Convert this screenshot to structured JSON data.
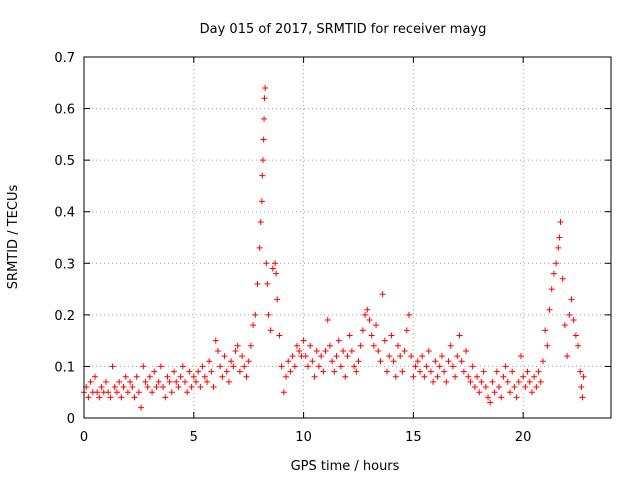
{
  "chart_data": {
    "type": "scatter",
    "title": "Day 015 of 2017, SRMTID for receiver mayg",
    "xlabel": "GPS time / hours",
    "ylabel": "SRMTID / TECUs",
    "xlim": [
      0,
      24
    ],
    "ylim": [
      0,
      0.7
    ],
    "x_ticks": [
      0,
      5,
      10,
      15,
      20
    ],
    "y_ticks": [
      0,
      0.1,
      0.2,
      0.3,
      0.4,
      0.5,
      0.6,
      0.7
    ],
    "x_tick_labels": [
      "0",
      "5",
      "10",
      "15",
      "20"
    ],
    "y_tick_labels": [
      "0",
      "0.1",
      "0.2",
      "0.3",
      "0.4",
      "0.5",
      "0.6",
      "0.7"
    ],
    "grid": true,
    "marker": "+",
    "color": "#ff0000",
    "series": [
      {
        "name": "SRMTID",
        "points": [
          [
            0.0,
            0.05
          ],
          [
            0.1,
            0.06
          ],
          [
            0.2,
            0.04
          ],
          [
            0.3,
            0.07
          ],
          [
            0.4,
            0.05
          ],
          [
            0.5,
            0.08
          ],
          [
            0.6,
            0.05
          ],
          [
            0.7,
            0.04
          ],
          [
            0.8,
            0.06
          ],
          [
            0.9,
            0.05
          ],
          [
            1.0,
            0.07
          ],
          [
            1.1,
            0.05
          ],
          [
            1.2,
            0.04
          ],
          [
            1.3,
            0.1
          ],
          [
            1.4,
            0.06
          ],
          [
            1.5,
            0.05
          ],
          [
            1.6,
            0.07
          ],
          [
            1.7,
            0.04
          ],
          [
            1.8,
            0.06
          ],
          [
            1.9,
            0.08
          ],
          [
            2.0,
            0.05
          ],
          [
            2.1,
            0.07
          ],
          [
            2.2,
            0.06
          ],
          [
            2.3,
            0.04
          ],
          [
            2.4,
            0.08
          ],
          [
            2.5,
            0.05
          ],
          [
            2.6,
            0.02
          ],
          [
            2.7,
            0.1
          ],
          [
            2.8,
            0.07
          ],
          [
            2.9,
            0.06
          ],
          [
            3.0,
            0.08
          ],
          [
            3.1,
            0.05
          ],
          [
            3.2,
            0.09
          ],
          [
            3.3,
            0.06
          ],
          [
            3.4,
            0.07
          ],
          [
            3.5,
            0.1
          ],
          [
            3.6,
            0.06
          ],
          [
            3.7,
            0.04
          ],
          [
            3.8,
            0.08
          ],
          [
            3.9,
            0.07
          ],
          [
            4.0,
            0.05
          ],
          [
            4.1,
            0.09
          ],
          [
            4.2,
            0.07
          ],
          [
            4.3,
            0.06
          ],
          [
            4.4,
            0.08
          ],
          [
            4.5,
            0.1
          ],
          [
            4.6,
            0.07
          ],
          [
            4.7,
            0.05
          ],
          [
            4.8,
            0.09
          ],
          [
            4.9,
            0.06
          ],
          [
            5.0,
            0.08
          ],
          [
            5.1,
            0.07
          ],
          [
            5.2,
            0.09
          ],
          [
            5.3,
            0.06
          ],
          [
            5.4,
            0.1
          ],
          [
            5.5,
            0.08
          ],
          [
            5.6,
            0.07
          ],
          [
            5.7,
            0.11
          ],
          [
            5.8,
            0.09
          ],
          [
            5.9,
            0.06
          ],
          [
            6.0,
            0.15
          ],
          [
            6.1,
            0.13
          ],
          [
            6.2,
            0.1
          ],
          [
            6.3,
            0.08
          ],
          [
            6.4,
            0.12
          ],
          [
            6.5,
            0.09
          ],
          [
            6.6,
            0.07
          ],
          [
            6.7,
            0.11
          ],
          [
            6.8,
            0.1
          ],
          [
            6.9,
            0.13
          ],
          [
            7.0,
            0.14
          ],
          [
            7.1,
            0.09
          ],
          [
            7.2,
            0.12
          ],
          [
            7.3,
            0.1
          ],
          [
            7.4,
            0.08
          ],
          [
            7.5,
            0.11
          ],
          [
            7.6,
            0.14
          ],
          [
            7.7,
            0.18
          ],
          [
            7.8,
            0.2
          ],
          [
            7.9,
            0.26
          ],
          [
            8.0,
            0.33
          ],
          [
            8.05,
            0.38
          ],
          [
            8.1,
            0.42
          ],
          [
            8.12,
            0.47
          ],
          [
            8.15,
            0.5
          ],
          [
            8.18,
            0.54
          ],
          [
            8.2,
            0.58
          ],
          [
            8.22,
            0.62
          ],
          [
            8.25,
            0.64
          ],
          [
            8.3,
            0.3
          ],
          [
            8.35,
            0.26
          ],
          [
            8.4,
            0.2
          ],
          [
            8.5,
            0.17
          ],
          [
            8.6,
            0.29
          ],
          [
            8.7,
            0.3
          ],
          [
            8.75,
            0.28
          ],
          [
            8.8,
            0.23
          ],
          [
            8.9,
            0.16
          ],
          [
            9.0,
            0.1
          ],
          [
            9.1,
            0.05
          ],
          [
            9.2,
            0.08
          ],
          [
            9.3,
            0.11
          ],
          [
            9.4,
            0.09
          ],
          [
            9.5,
            0.12
          ],
          [
            9.6,
            0.1
          ],
          [
            9.7,
            0.14
          ],
          [
            9.8,
            0.13
          ],
          [
            9.9,
            0.12
          ],
          [
            10.0,
            0.15
          ],
          [
            10.1,
            0.12
          ],
          [
            10.2,
            0.1
          ],
          [
            10.3,
            0.14
          ],
          [
            10.4,
            0.11
          ],
          [
            10.5,
            0.08
          ],
          [
            10.6,
            0.13
          ],
          [
            10.7,
            0.1
          ],
          [
            10.8,
            0.12
          ],
          [
            10.9,
            0.09
          ],
          [
            11.0,
            0.13
          ],
          [
            11.1,
            0.19
          ],
          [
            11.2,
            0.14
          ],
          [
            11.3,
            0.11
          ],
          [
            11.4,
            0.09
          ],
          [
            11.5,
            0.12
          ],
          [
            11.6,
            0.15
          ],
          [
            11.7,
            0.1
          ],
          [
            11.8,
            0.13
          ],
          [
            11.9,
            0.08
          ],
          [
            12.0,
            0.12
          ],
          [
            12.1,
            0.16
          ],
          [
            12.2,
            0.13
          ],
          [
            12.3,
            0.1
          ],
          [
            12.4,
            0.09
          ],
          [
            12.5,
            0.11
          ],
          [
            12.6,
            0.14
          ],
          [
            12.7,
            0.17
          ],
          [
            12.8,
            0.2
          ],
          [
            12.9,
            0.21
          ],
          [
            13.0,
            0.19
          ],
          [
            13.1,
            0.16
          ],
          [
            13.2,
            0.14
          ],
          [
            13.3,
            0.18
          ],
          [
            13.4,
            0.13
          ],
          [
            13.5,
            0.11
          ],
          [
            13.6,
            0.24
          ],
          [
            13.7,
            0.15
          ],
          [
            13.8,
            0.09
          ],
          [
            13.9,
            0.12
          ],
          [
            14.0,
            0.16
          ],
          [
            14.1,
            0.11
          ],
          [
            14.2,
            0.08
          ],
          [
            14.3,
            0.14
          ],
          [
            14.4,
            0.12
          ],
          [
            14.5,
            0.09
          ],
          [
            14.6,
            0.13
          ],
          [
            14.7,
            0.17
          ],
          [
            14.8,
            0.2
          ],
          [
            14.9,
            0.12
          ],
          [
            15.0,
            0.08
          ],
          [
            15.1,
            0.1
          ],
          [
            15.2,
            0.11
          ],
          [
            15.3,
            0.09
          ],
          [
            15.4,
            0.12
          ],
          [
            15.5,
            0.08
          ],
          [
            15.6,
            0.1
          ],
          [
            15.7,
            0.13
          ],
          [
            15.8,
            0.09
          ],
          [
            15.9,
            0.07
          ],
          [
            16.0,
            0.11
          ],
          [
            16.1,
            0.08
          ],
          [
            16.2,
            0.1
          ],
          [
            16.3,
            0.12
          ],
          [
            16.4,
            0.09
          ],
          [
            16.5,
            0.07
          ],
          [
            16.6,
            0.11
          ],
          [
            16.7,
            0.14
          ],
          [
            16.8,
            0.1
          ],
          [
            16.9,
            0.08
          ],
          [
            17.0,
            0.12
          ],
          [
            17.1,
            0.16
          ],
          [
            17.2,
            0.11
          ],
          [
            17.3,
            0.09
          ],
          [
            17.4,
            0.13
          ],
          [
            17.5,
            0.08
          ],
          [
            17.6,
            0.07
          ],
          [
            17.7,
            0.1
          ],
          [
            17.8,
            0.06
          ],
          [
            17.9,
            0.08
          ],
          [
            18.0,
            0.05
          ],
          [
            18.1,
            0.07
          ],
          [
            18.2,
            0.09
          ],
          [
            18.3,
            0.06
          ],
          [
            18.4,
            0.04
          ],
          [
            18.5,
            0.03
          ],
          [
            18.6,
            0.07
          ],
          [
            18.7,
            0.05
          ],
          [
            18.8,
            0.09
          ],
          [
            18.9,
            0.06
          ],
          [
            19.0,
            0.04
          ],
          [
            19.1,
            0.08
          ],
          [
            19.2,
            0.1
          ],
          [
            19.3,
            0.07
          ],
          [
            19.4,
            0.05
          ],
          [
            19.5,
            0.09
          ],
          [
            19.6,
            0.06
          ],
          [
            19.7,
            0.04
          ],
          [
            19.8,
            0.07
          ],
          [
            19.9,
            0.12
          ],
          [
            20.0,
            0.08
          ],
          [
            20.1,
            0.06
          ],
          [
            20.2,
            0.09
          ],
          [
            20.3,
            0.07
          ],
          [
            20.4,
            0.05
          ],
          [
            20.5,
            0.08
          ],
          [
            20.6,
            0.06
          ],
          [
            20.7,
            0.09
          ],
          [
            20.8,
            0.07
          ],
          [
            20.9,
            0.11
          ],
          [
            21.0,
            0.17
          ],
          [
            21.1,
            0.14
          ],
          [
            21.2,
            0.21
          ],
          [
            21.3,
            0.25
          ],
          [
            21.4,
            0.28
          ],
          [
            21.5,
            0.3
          ],
          [
            21.6,
            0.33
          ],
          [
            21.65,
            0.35
          ],
          [
            21.7,
            0.38
          ],
          [
            21.8,
            0.27
          ],
          [
            21.9,
            0.18
          ],
          [
            22.0,
            0.12
          ],
          [
            22.1,
            0.2
          ],
          [
            22.2,
            0.23
          ],
          [
            22.3,
            0.19
          ],
          [
            22.4,
            0.16
          ],
          [
            22.5,
            0.14
          ],
          [
            22.6,
            0.09
          ],
          [
            22.65,
            0.06
          ],
          [
            22.7,
            0.04
          ],
          [
            22.75,
            0.08
          ]
        ]
      }
    ]
  }
}
